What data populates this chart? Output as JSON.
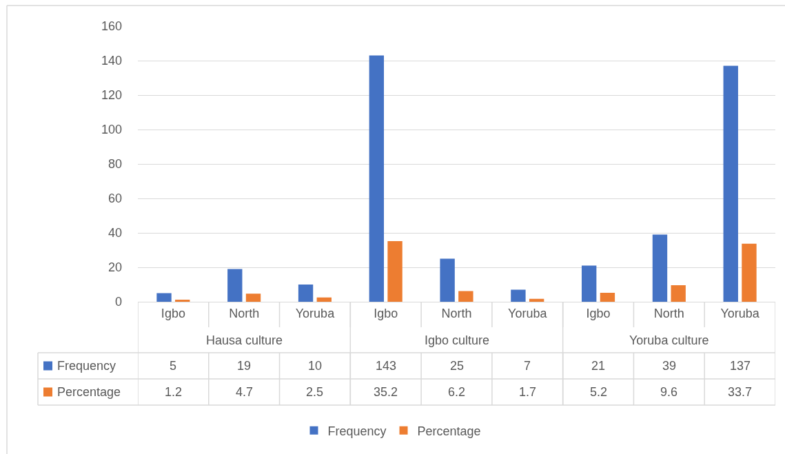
{
  "chart_data": {
    "type": "bar",
    "categories": [
      "Igbo",
      "North",
      "Yoruba",
      "Igbo",
      "North",
      "Yoruba",
      "Igbo",
      "North",
      "Yoruba"
    ],
    "annotations": [
      "Hausa culture",
      "Igbo culture",
      "Yoruba culture"
    ],
    "series": [
      {
        "name": "Frequency",
        "color": "#4472c4",
        "values": [
          5,
          19,
          10,
          143,
          25,
          7,
          21,
          39,
          137
        ]
      },
      {
        "name": "Percentage",
        "color": "#ed7d31",
        "values": [
          1.2,
          4.7,
          2.5,
          35.2,
          6.2,
          1.7,
          5.2,
          9.6,
          33.7
        ]
      }
    ],
    "ylim": [
      0,
      160
    ],
    "yticks": [
      0,
      20,
      40,
      60,
      80,
      100,
      120,
      140,
      160
    ],
    "grid": "y",
    "legend": "bottom",
    "data_labels": true
  }
}
